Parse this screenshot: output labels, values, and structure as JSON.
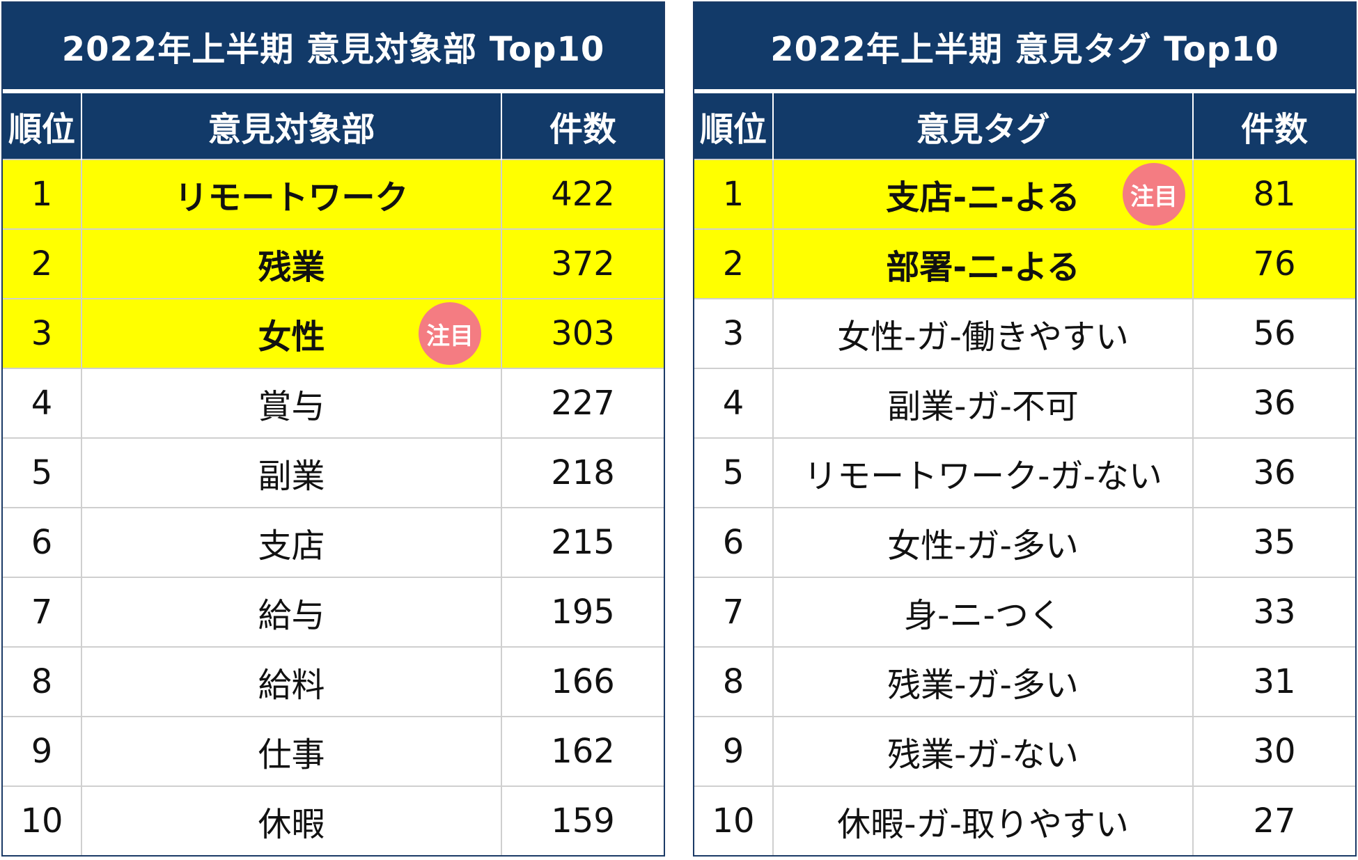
{
  "badge_label": "注目",
  "colors": {
    "header_bg": "#123a69",
    "highlight": "#ffff00",
    "badge": "#f47c82"
  },
  "chart_data": [
    {
      "type": "table",
      "title": "2022年上半期 意見対象部 Top10",
      "columns": [
        "順位",
        "意見対象部",
        "件数"
      ],
      "rows": [
        {
          "rank": "1",
          "name": "リモートワーク",
          "count": "422",
          "highlight": true,
          "badge": false
        },
        {
          "rank": "2",
          "name": "残業",
          "count": "372",
          "highlight": true,
          "badge": false
        },
        {
          "rank": "3",
          "name": "女性",
          "count": "303",
          "highlight": true,
          "badge": true
        },
        {
          "rank": "4",
          "name": "賞与",
          "count": "227",
          "highlight": false,
          "badge": false
        },
        {
          "rank": "5",
          "name": "副業",
          "count": "218",
          "highlight": false,
          "badge": false
        },
        {
          "rank": "6",
          "name": "支店",
          "count": "215",
          "highlight": false,
          "badge": false
        },
        {
          "rank": "7",
          "name": "給与",
          "count": "195",
          "highlight": false,
          "badge": false
        },
        {
          "rank": "8",
          "name": "給料",
          "count": "166",
          "highlight": false,
          "badge": false
        },
        {
          "rank": "9",
          "name": "仕事",
          "count": "162",
          "highlight": false,
          "badge": false
        },
        {
          "rank": "10",
          "name": "休暇",
          "count": "159",
          "highlight": false,
          "badge": false
        }
      ]
    },
    {
      "type": "table",
      "title": "2022年上半期 意見タグ Top10",
      "columns": [
        "順位",
        "意見タグ",
        "件数"
      ],
      "rows": [
        {
          "rank": "1",
          "name": "支店-ニ-よる",
          "count": "81",
          "highlight": true,
          "badge": true
        },
        {
          "rank": "2",
          "name": "部署-ニ-よる",
          "count": "76",
          "highlight": true,
          "badge": false
        },
        {
          "rank": "3",
          "name": "女性-ガ-働きやすい",
          "count": "56",
          "highlight": false,
          "badge": false
        },
        {
          "rank": "4",
          "name": "副業-ガ-不可",
          "count": "36",
          "highlight": false,
          "badge": false
        },
        {
          "rank": "5",
          "name": "リモートワーク-ガ-ない",
          "count": "36",
          "highlight": false,
          "badge": false
        },
        {
          "rank": "6",
          "name": "女性-ガ-多い",
          "count": "35",
          "highlight": false,
          "badge": false
        },
        {
          "rank": "7",
          "name": "身-ニ-つく",
          "count": "33",
          "highlight": false,
          "badge": false
        },
        {
          "rank": "8",
          "name": "残業-ガ-多い",
          "count": "31",
          "highlight": false,
          "badge": false
        },
        {
          "rank": "9",
          "name": "残業-ガ-ない",
          "count": "30",
          "highlight": false,
          "badge": false
        },
        {
          "rank": "10",
          "name": "休暇-ガ-取りやすい",
          "count": "27",
          "highlight": false,
          "badge": false
        }
      ]
    }
  ]
}
